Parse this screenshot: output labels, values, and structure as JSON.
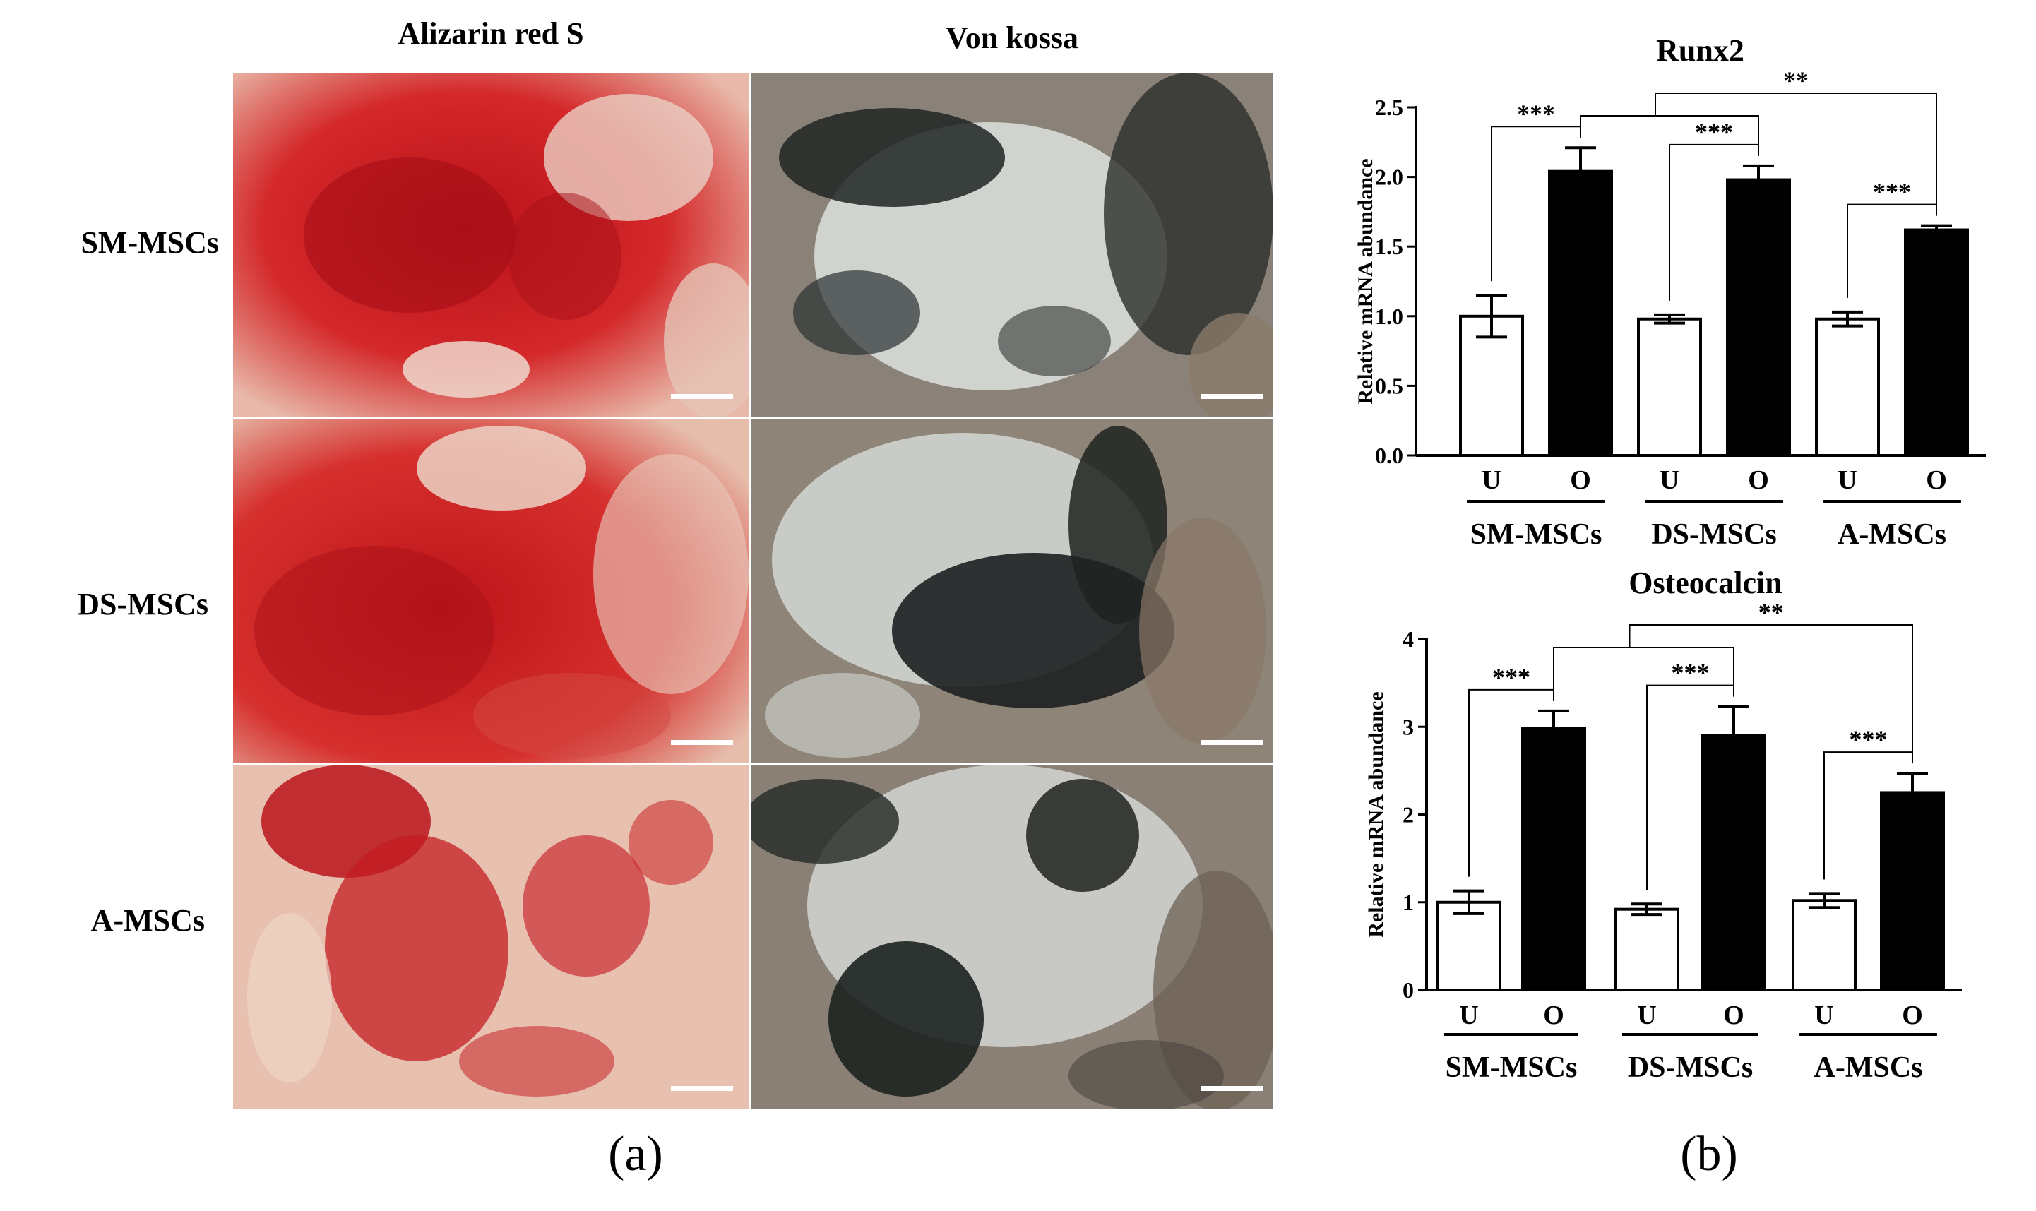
{
  "figure": {
    "panel_a": {
      "label": "(a)",
      "columns": [
        "Alizarin red S",
        "Von kossa"
      ],
      "rows": [
        "SM-MSCs",
        "DS-MSCs",
        "A-MSCs"
      ]
    },
    "panel_b": {
      "label": "(b)"
    }
  },
  "chart_data": [
    {
      "type": "bar",
      "title": "Runx2",
      "ylabel": "Relative mRNA abundance",
      "ylim": [
        0,
        2.5
      ],
      "yticks": [
        "0.0",
        "0.5",
        "1.0",
        "1.5",
        "2.0",
        "2.5"
      ],
      "ytick_values": [
        0,
        0.5,
        1.0,
        1.5,
        2.0,
        2.5
      ],
      "groups": [
        "SM-MSCs",
        "DS-MSCs",
        "A-MSCs"
      ],
      "categories": [
        "U",
        "O",
        "U",
        "O",
        "U",
        "O"
      ],
      "values": [
        1.0,
        2.04,
        0.98,
        1.98,
        0.98,
        1.62
      ],
      "errors": [
        0.15,
        0.17,
        0.03,
        0.1,
        0.05,
        0.03
      ],
      "fills": [
        "#ffffff",
        "#000000",
        "#ffffff",
        "#000000",
        "#ffffff",
        "#000000"
      ],
      "significance": [
        {
          "label": "***",
          "from": 0,
          "to": 1
        },
        {
          "label": "***",
          "from": 2,
          "to": 3
        },
        {
          "label": "***",
          "from": 4,
          "to": 5
        },
        {
          "label": "**",
          "from": 1,
          "to": [
            3,
            5
          ]
        }
      ]
    },
    {
      "type": "bar",
      "title": "Osteocalcin",
      "ylabel": "Relative mRNA abundance",
      "ylim": [
        0,
        4
      ],
      "yticks": [
        "0",
        "1",
        "2",
        "3",
        "4"
      ],
      "ytick_values": [
        0,
        1,
        2,
        3,
        4
      ],
      "groups": [
        "SM-MSCs",
        "DS-MSCs",
        "A-MSCs"
      ],
      "categories": [
        "U",
        "O",
        "U",
        "O",
        "U",
        "O"
      ],
      "values": [
        1.0,
        2.98,
        0.92,
        2.9,
        1.02,
        2.25
      ],
      "errors": [
        0.13,
        0.2,
        0.06,
        0.33,
        0.08,
        0.22
      ],
      "fills": [
        "#ffffff",
        "#000000",
        "#ffffff",
        "#000000",
        "#ffffff",
        "#000000"
      ],
      "significance": [
        {
          "label": "***",
          "from": 0,
          "to": 1
        },
        {
          "label": "***",
          "from": 2,
          "to": 3
        },
        {
          "label": "***",
          "from": 4,
          "to": 5
        },
        {
          "label": "**",
          "from": 1,
          "to": [
            3,
            5
          ]
        }
      ]
    }
  ]
}
